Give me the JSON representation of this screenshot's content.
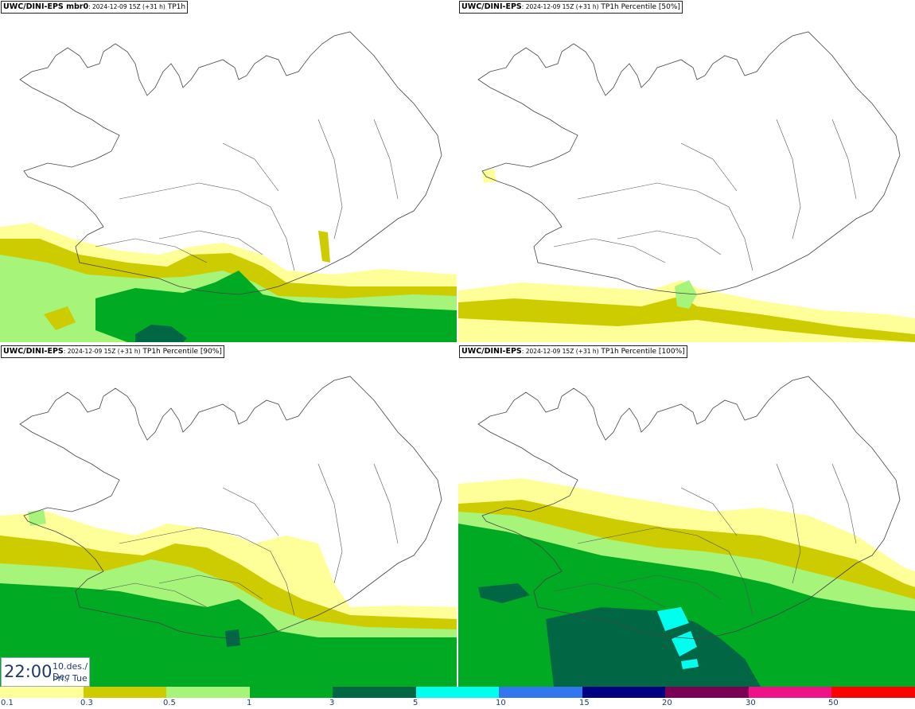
{
  "panels": [
    {
      "model": "UWC/DINI-EPS mbr0",
      "run": ": 2024-12-09 15Z (+31 h)",
      "field": " TP1h"
    },
    {
      "model": "UWC/DINI-EPS",
      "run": ": 2024-12-09 15Z (+31 h)",
      "field": " TP1h Percentile [50%]"
    },
    {
      "model": "UWC/DINI-EPS",
      "run": ": 2024-12-09 15Z (+31 h)",
      "field": " TP1h Percentile [90%]"
    },
    {
      "model": "UWC/DINI-EPS",
      "run": ": 2024-12-09 15Z (+31 h)",
      "field": " TP1h Percentile [100%]"
    }
  ],
  "time": {
    "clock": "22:00",
    "date": "10.des./ Dec",
    "weekday": "Þri./ Tue"
  },
  "legend": {
    "colors": [
      "#ffff99",
      "#cccc00",
      "#a6f57a",
      "#00aa22",
      "#006644",
      "#00ffee",
      "#3377ee",
      "#000080",
      "#7a0055",
      "#ee1188",
      "#ff0000"
    ],
    "labels": [
      "0.1",
      "0.3",
      "0.5",
      "1",
      "3",
      "5",
      "10",
      "15",
      "20",
      "30",
      "50"
    ]
  }
}
